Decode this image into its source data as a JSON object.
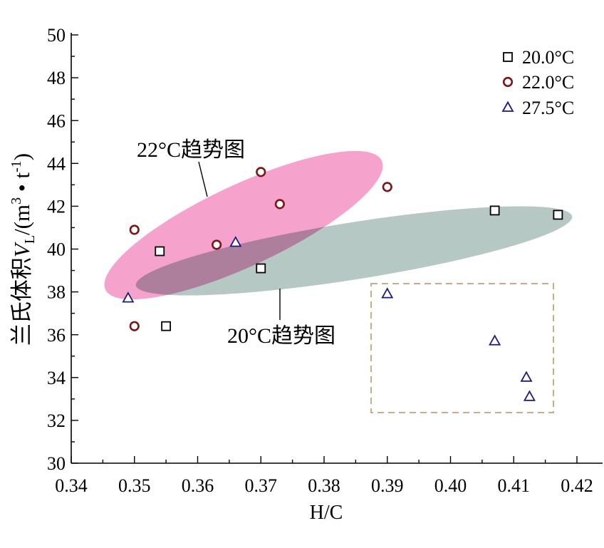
{
  "chart_data": {
    "type": "scatter",
    "title": "",
    "xlabel": "H/C",
    "ylabel": {
      "name": "兰氏体积",
      "symbol": "V",
      "subscript": "L",
      "unit_open": "/(m",
      "unit_sup_1": "3",
      "unit_mid": " • t",
      "unit_sup_2": "-1",
      "unit_close": ")"
    },
    "xlim": [
      0.34,
      0.42
    ],
    "ylim": [
      30,
      50
    ],
    "xtick_labels": [
      "0.34",
      "0.35",
      "0.36",
      "0.37",
      "0.38",
      "0.39",
      "0.40",
      "0.41",
      "0.42"
    ],
    "ytick_labels": [
      "30",
      "32",
      "34",
      "36",
      "38",
      "40",
      "42",
      "44",
      "46",
      "48",
      "50"
    ],
    "grid": false,
    "legend_position": "top-right",
    "series": [
      {
        "name": "20.0°C",
        "marker": "square",
        "color": "#000000",
        "points": [
          [
            0.354,
            39.9
          ],
          [
            0.355,
            36.4
          ],
          [
            0.37,
            39.1
          ],
          [
            0.407,
            41.8
          ],
          [
            0.417,
            41.6
          ]
        ]
      },
      {
        "name": "22.0°C",
        "marker": "circle",
        "color": "#7c1717",
        "points": [
          [
            0.35,
            40.9
          ],
          [
            0.35,
            36.4
          ],
          [
            0.363,
            40.2
          ],
          [
            0.37,
            43.6
          ],
          [
            0.373,
            42.1
          ],
          [
            0.39,
            42.9
          ]
        ]
      },
      {
        "name": "27.5°C",
        "marker": "triangle",
        "color": "#1b1b7a",
        "points": [
          [
            0.349,
            37.7
          ],
          [
            0.366,
            40.3
          ],
          [
            0.39,
            37.9
          ],
          [
            0.407,
            35.7
          ],
          [
            0.412,
            34.0
          ],
          [
            0.4125,
            33.1
          ]
        ]
      }
    ],
    "annotations": {
      "trend_22": "22°C趋势图",
      "trend_20": "20°C趋势图"
    },
    "region_colors": {
      "trend_22": "#f5a2cd",
      "trend_20": "#b5c8c4",
      "dashed_box": "#c9ad89"
    }
  }
}
